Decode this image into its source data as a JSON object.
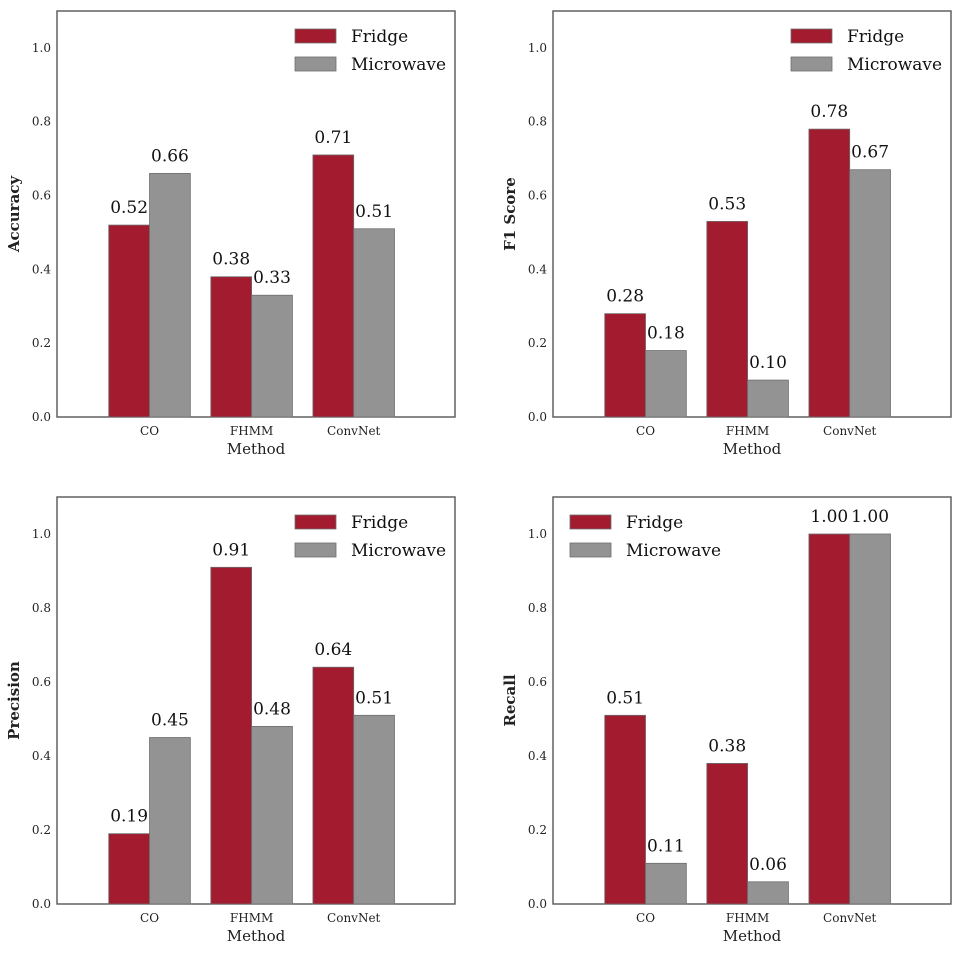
{
  "chart_data": [
    {
      "type": "bar",
      "categories": [
        "CO",
        "FHMM",
        "ConvNet"
      ],
      "xlabel": "Method",
      "ylabel": "Accuracy",
      "ylim": [
        0,
        1.1
      ],
      "yticks": [
        "0.0",
        "0.2",
        "0.4",
        "0.6",
        "0.8",
        "1.0"
      ],
      "legend_position": "top-right",
      "series": [
        {
          "name": "Fridge",
          "color": "#a31b2f",
          "values": [
            0.52,
            0.38,
            0.71
          ],
          "labels": [
            "0.52",
            "0.38",
            "0.71"
          ]
        },
        {
          "name": "Microwave",
          "color": "#939393",
          "values": [
            0.66,
            0.33,
            0.51
          ],
          "labels": [
            "0.66",
            "0.33",
            "0.51"
          ]
        }
      ]
    },
    {
      "type": "bar",
      "categories": [
        "CO",
        "FHMM",
        "ConvNet"
      ],
      "xlabel": "Method",
      "ylabel": "F1 Score",
      "ylim": [
        0,
        1.1
      ],
      "yticks": [
        "0.0",
        "0.2",
        "0.4",
        "0.6",
        "0.8",
        "1.0"
      ],
      "legend_position": "top-right",
      "series": [
        {
          "name": "Fridge",
          "color": "#a31b2f",
          "values": [
            0.28,
            0.53,
            0.78
          ],
          "labels": [
            "0.28",
            "0.53",
            "0.78"
          ]
        },
        {
          "name": "Microwave",
          "color": "#939393",
          "values": [
            0.18,
            0.1,
            0.67
          ],
          "labels": [
            "0.18",
            "0.10",
            "0.67"
          ]
        }
      ]
    },
    {
      "type": "bar",
      "categories": [
        "CO",
        "FHMM",
        "ConvNet"
      ],
      "xlabel": "Method",
      "ylabel": "Precision",
      "ylim": [
        0,
        1.1
      ],
      "yticks": [
        "0.0",
        "0.2",
        "0.4",
        "0.6",
        "0.8",
        "1.0"
      ],
      "legend_position": "top-right",
      "series": [
        {
          "name": "Fridge",
          "color": "#a31b2f",
          "values": [
            0.19,
            0.91,
            0.64
          ],
          "labels": [
            "0.19",
            "0.91",
            "0.64"
          ]
        },
        {
          "name": "Microwave",
          "color": "#939393",
          "values": [
            0.45,
            0.48,
            0.51
          ],
          "labels": [
            "0.45",
            "0.48",
            "0.51"
          ]
        }
      ]
    },
    {
      "type": "bar",
      "categories": [
        "CO",
        "FHMM",
        "ConvNet"
      ],
      "xlabel": "Method",
      "ylabel": "Recall",
      "ylim": [
        0,
        1.1
      ],
      "yticks": [
        "0.0",
        "0.2",
        "0.4",
        "0.6",
        "0.8",
        "1.0"
      ],
      "legend_position": "top-left",
      "series": [
        {
          "name": "Fridge",
          "color": "#a31b2f",
          "values": [
            0.51,
            0.38,
            1.0
          ],
          "labels": [
            "0.51",
            "0.38",
            "1.00"
          ]
        },
        {
          "name": "Microwave",
          "color": "#939393",
          "values": [
            0.11,
            0.06,
            1.0
          ],
          "labels": [
            "0.11",
            "0.06",
            "1.00"
          ]
        }
      ]
    }
  ]
}
